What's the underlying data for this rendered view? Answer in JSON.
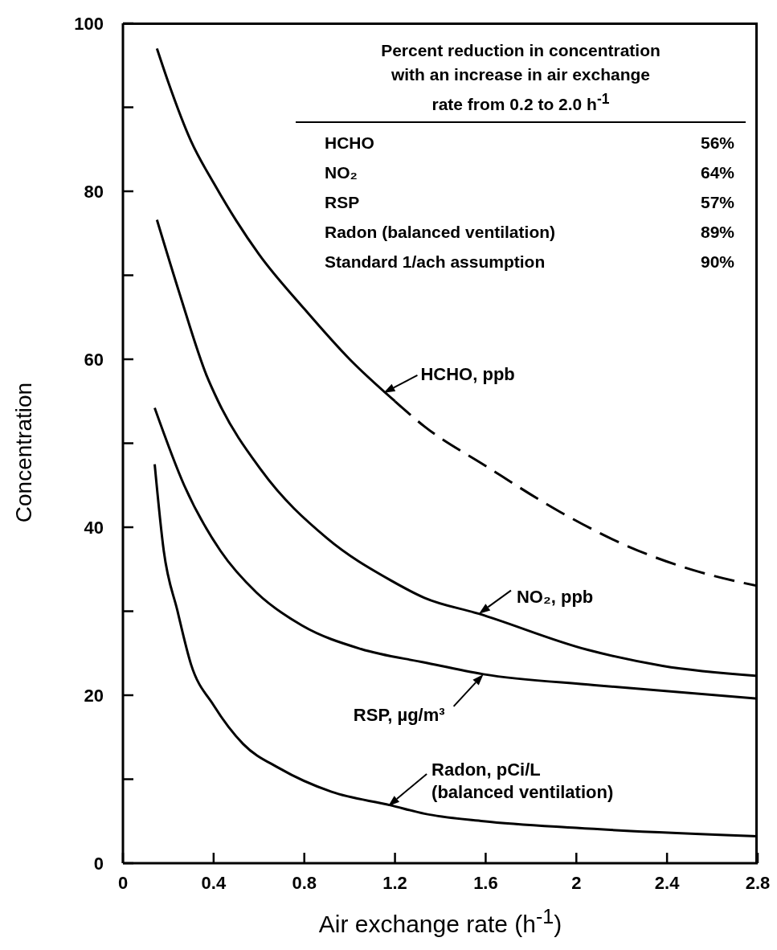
{
  "chart_data": {
    "type": "line",
    "xlabel": "Air exchange rate (h$^{-1}$)",
    "ylabel": "Concentration",
    "xlim": [
      0,
      2.8
    ],
    "xticks": [
      0,
      0.4,
      0.8,
      1.2,
      1.6,
      2,
      2.4,
      2.8
    ],
    "ylim": [
      0,
      100
    ],
    "yticks": [
      0,
      {
        "value": 10,
        "label": null
      },
      20,
      {
        "value": 30,
        "label": null
      },
      40,
      {
        "value": 50,
        "label": null
      },
      60,
      {
        "value": 70,
        "label": null
      },
      80,
      {
        "value": 90,
        "label": null
      },
      100
    ],
    "marker": "none",
    "series": [
      {
        "color": "#000000",
        "line_style": "solid",
        "x": [
          0.15,
          0.2,
          0.3,
          0.4,
          0.5,
          0.6,
          0.8,
          1.0,
          1.2
        ],
        "values": [
          97,
          93,
          86,
          81,
          76.5,
          72.5,
          66,
          60,
          55
        ]
      },
      {
        "color": "#000000",
        "line_style": "dashed",
        "x": [
          1.2,
          1.33,
          1.6,
          1.93,
          2.23,
          2.54,
          2.8
        ],
        "values": [
          55,
          52,
          47.3,
          41.8,
          37.7,
          34.7,
          33
        ]
      },
      {
        "color": "#000000",
        "line_style": "solid",
        "x": [
          0.15,
          0.25,
          0.37,
          0.42,
          0.61,
          0.9,
          1.18,
          1.33,
          1.57,
          2.05,
          2.38,
          2.8
        ],
        "values": [
          76.6,
          67.8,
          58,
          55,
          46.8,
          38.7,
          33.7,
          31.6,
          29.7,
          25.4,
          23.5,
          22.3
        ]
      },
      {
        "color": "#000000",
        "line_style": "solid",
        "x": [
          0.14,
          0.27,
          0.43,
          0.59,
          0.79,
          1.05,
          1.33,
          1.59,
          2.08,
          2.8
        ],
        "values": [
          54.2,
          45,
          37.2,
          32.2,
          28.3,
          25.5,
          23.9,
          22.5,
          21.2,
          19.6
        ]
      },
      {
        "color": "#000000",
        "line_style": "solid",
        "x": [
          0.14,
          0.18,
          0.24,
          0.3,
          0.4,
          0.53,
          0.69,
          0.92,
          1.18,
          1.33,
          1.59,
          2.0,
          2.8
        ],
        "values": [
          47.5,
          37.2,
          30.1,
          23.7,
          18.8,
          14.2,
          11.3,
          8.5,
          6.9,
          5.9,
          5.0,
          4.2,
          3.2
        ]
      }
    ],
    "annotations": [
      {
        "text": "HCHO, ppb",
        "x": 1.15,
        "y": 56
      },
      {
        "text": "NO₂, ppb",
        "x": 1.57,
        "y": 29.7
      },
      {
        "text": "RSP, µg/m³",
        "x": 1.59,
        "y": 22.5
      },
      {
        "text": "Radon, pCi/L\n(balanced ventilation)",
        "x": 1.17,
        "y": 6.8
      },
      "Percent reduction in concentration\nwith an increase in air exchange\nrate from 0.2 to 2.0 h$^{-1}$",
      "HCHO 56%",
      "NO₂ 64%",
      "RSP 57%",
      "Radon (balanced ventilation) 89%",
      "Standard 1/ach assumption 90%"
    ]
  }
}
